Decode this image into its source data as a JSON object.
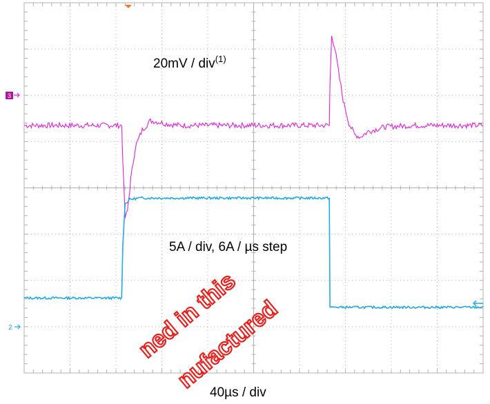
{
  "colors": {
    "grid": "#b0b0b0",
    "ch3": "#e020e0",
    "ch2": "#1eaae6",
    "marker": "#f07820",
    "ch3_badge": "#b0169c",
    "watermark": "#e8201c"
  },
  "channels": {
    "ch3_marker": "3",
    "ch2_marker": "2"
  },
  "labels": {
    "voltage_scale": "20mV / div",
    "voltage_footnote": "(1)",
    "current_scale": "5A / div, 6A / µs step",
    "time_scale": "40µs / div"
  },
  "watermark": {
    "line1": "ned in this",
    "line2": "nufactured"
  },
  "chart_data": {
    "type": "line",
    "title": "",
    "xlabel": "40µs / div",
    "x_unit": "µs",
    "xlim": [
      0,
      400
    ],
    "series": [
      {
        "channel": "3",
        "scale_label": "20mV / div",
        "baseline_div": 5.35,
        "x": [
          0,
          85,
          86,
          88,
          90,
          93,
          97,
          103,
          110,
          118,
          125,
          135,
          150,
          200,
          260,
          266,
          266.5,
          268,
          271,
          274,
          278,
          283,
          288,
          293,
          300,
          315,
          340,
          400
        ],
        "div": [
          5.35,
          5.35,
          4.6,
          3.35,
          3.5,
          4.2,
          4.9,
          5.25,
          5.45,
          5.42,
          5.38,
          5.35,
          5.35,
          5.35,
          5.35,
          5.35,
          6.2,
          7.3,
          7.0,
          6.5,
          5.9,
          5.4,
          5.15,
          5.1,
          5.22,
          5.32,
          5.35,
          5.35
        ]
      },
      {
        "channel": "2",
        "scale_label": "5A / div, 6A / µs step",
        "x": [
          0,
          85,
          86,
          88,
          92,
          100,
          266,
          266.5,
          400
        ],
        "div": [
          1.62,
          1.62,
          2.8,
          3.65,
          3.75,
          3.78,
          3.78,
          1.42,
          1.42
        ]
      }
    ]
  }
}
